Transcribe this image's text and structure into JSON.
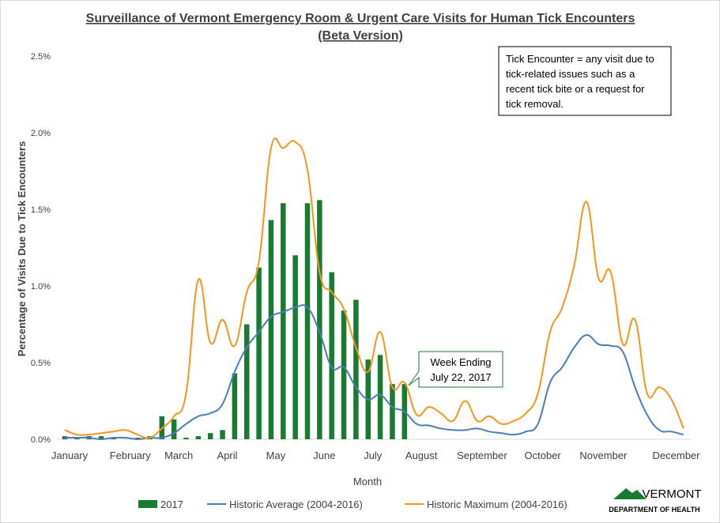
{
  "chart_data": {
    "type": "combo",
    "title": "Surveillance of Vermont Emergency Room & Urgent Care Visits for Human Tick Encounters",
    "subtitle": "(Beta Version)",
    "x_label": "Month",
    "y_label": "Percentage of Visits Due to Tick Encounters",
    "categories": [
      "January",
      null,
      null,
      null,
      null,
      "February",
      null,
      null,
      null,
      "March",
      null,
      null,
      null,
      "April",
      null,
      null,
      null,
      "May",
      null,
      null,
      null,
      "June",
      null,
      null,
      null,
      "July",
      null,
      null,
      null,
      "August",
      null,
      null,
      null,
      null,
      "September",
      null,
      null,
      null,
      null,
      "October",
      null,
      null,
      null,
      null,
      "November",
      null,
      null,
      null,
      null,
      null,
      "December",
      null
    ],
    "ylim": [
      0,
      2.5
    ],
    "yticks": [
      {
        "value": 0,
        "label": "0.0%"
      },
      {
        "value": 0.5,
        "label": "0.5%"
      },
      {
        "value": 1,
        "label": "1.0%"
      },
      {
        "value": 1.5,
        "label": "1.5%"
      },
      {
        "value": 2,
        "label": "2.0%"
      },
      {
        "value": 2.5,
        "label": "2.5%"
      }
    ],
    "legend": "bottom",
    "series": [
      {
        "name": "2017",
        "type": "bar",
        "color": "#197b30",
        "values": [
          0.02,
          0.01,
          0.02,
          0.02,
          0.01,
          0,
          0.01,
          0.02,
          0.15,
          0.13,
          0.01,
          0.02,
          0.04,
          0.06,
          0.43,
          0.75,
          1.12,
          1.43,
          1.54,
          1.2,
          1.54,
          1.56,
          1.09,
          0.84,
          0.91,
          0.52,
          0.55,
          0.36,
          0.36,
          null,
          null,
          null,
          null,
          null,
          null,
          null,
          null,
          null,
          null,
          null,
          null,
          null,
          null,
          null,
          null,
          null,
          null,
          null,
          null,
          null,
          null,
          null
        ]
      },
      {
        "name": "Historic Average (2004-2016)",
        "type": "line",
        "color": "#4a7ebb",
        "values": [
          0.01,
          0.01,
          0.01,
          0,
          0.01,
          0.01,
          0,
          0.01,
          0.01,
          0.04,
          0.1,
          0.15,
          0.17,
          0.23,
          0.44,
          0.6,
          0.7,
          0.8,
          0.83,
          0.86,
          0.86,
          0.7,
          0.47,
          0.47,
          0.34,
          0.26,
          0.29,
          0.21,
          0.18,
          0.1,
          0.09,
          0.07,
          0.06,
          0.06,
          0.07,
          0.05,
          0.04,
          0.03,
          0.05,
          0.1,
          0.37,
          0.47,
          0.6,
          0.68,
          0.62,
          0.61,
          0.57,
          0.34,
          0.16,
          0.06,
          0.05,
          0.03
        ]
      },
      {
        "name": "Historic Maximum (2004-2016)",
        "type": "line",
        "color": "#f7941d",
        "values": [
          0.06,
          0.03,
          0.03,
          0.04,
          0.05,
          0.06,
          0.03,
          0.01,
          0.07,
          0.15,
          0.3,
          1.04,
          0.63,
          0.78,
          0.61,
          0.96,
          1.16,
          1.9,
          1.9,
          1.94,
          1.76,
          1.09,
          0.96,
          0.85,
          0.6,
          0.44,
          0.7,
          0.34,
          0.37,
          0.16,
          0.21,
          0.17,
          0.12,
          0.25,
          0.12,
          0.15,
          0.1,
          0.12,
          0.17,
          0.3,
          0.7,
          0.86,
          1.14,
          1.55,
          1.05,
          1.09,
          0.62,
          0.78,
          0.3,
          0.34,
          0.26,
          0.07
        ]
      }
    ],
    "info_box": [
      "Tick Encounter = any visit due to",
      "tick-related issues such as a",
      "recent tick bite or a request for",
      "tick removal."
    ],
    "callout": [
      "Week Ending",
      "July 22, 2017"
    ],
    "logo": [
      "VERMONT",
      "DEPARTMENT OF HEALTH"
    ]
  }
}
